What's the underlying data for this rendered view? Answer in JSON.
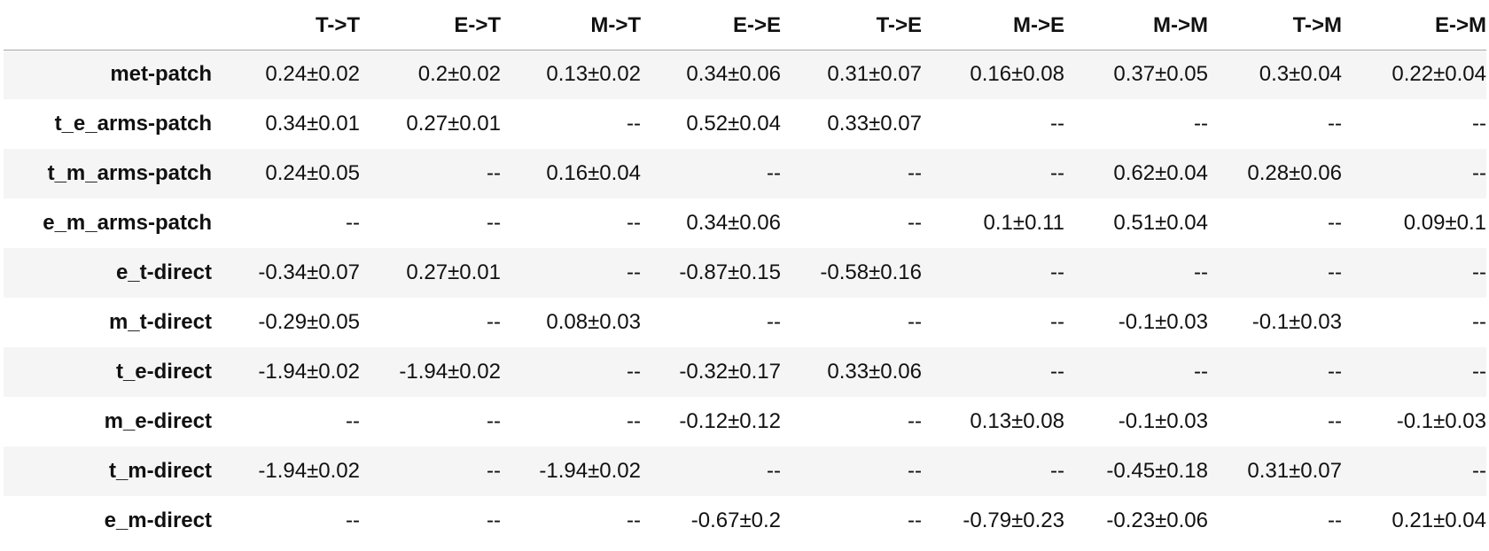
{
  "table": {
    "index_header": "",
    "columns": [
      "T->T",
      "E->T",
      "M->T",
      "E->E",
      "T->E",
      "M->E",
      "M->M",
      "T->M",
      "E->M"
    ],
    "rows": [
      {
        "label": "met-patch",
        "cells": [
          "0.24±0.02",
          "0.2±0.02",
          "0.13±0.02",
          "0.34±0.06",
          "0.31±0.07",
          "0.16±0.08",
          "0.37±0.05",
          "0.3±0.04",
          "0.22±0.04"
        ]
      },
      {
        "label": "t_e_arms-patch",
        "cells": [
          "0.34±0.01",
          "0.27±0.01",
          "--",
          "0.52±0.04",
          "0.33±0.07",
          "--",
          "--",
          "--",
          "--"
        ]
      },
      {
        "label": "t_m_arms-patch",
        "cells": [
          "0.24±0.05",
          "--",
          "0.16±0.04",
          "--",
          "--",
          "--",
          "0.62±0.04",
          "0.28±0.06",
          "--"
        ]
      },
      {
        "label": "e_m_arms-patch",
        "cells": [
          "--",
          "--",
          "--",
          "0.34±0.06",
          "--",
          "0.1±0.11",
          "0.51±0.04",
          "--",
          "0.09±0.1"
        ]
      },
      {
        "label": "e_t-direct",
        "cells": [
          "-0.34±0.07",
          "0.27±0.01",
          "--",
          "-0.87±0.15",
          "-0.58±0.16",
          "--",
          "--",
          "--",
          "--"
        ]
      },
      {
        "label": "m_t-direct",
        "cells": [
          "-0.29±0.05",
          "--",
          "0.08±0.03",
          "--",
          "--",
          "--",
          "-0.1±0.03",
          "-0.1±0.03",
          "--"
        ]
      },
      {
        "label": "t_e-direct",
        "cells": [
          "-1.94±0.02",
          "-1.94±0.02",
          "--",
          "-0.32±0.17",
          "0.33±0.06",
          "--",
          "--",
          "--",
          "--"
        ]
      },
      {
        "label": "m_e-direct",
        "cells": [
          "--",
          "--",
          "--",
          "-0.12±0.12",
          "--",
          "0.13±0.08",
          "-0.1±0.03",
          "--",
          "-0.1±0.03"
        ]
      },
      {
        "label": "t_m-direct",
        "cells": [
          "-1.94±0.02",
          "--",
          "-1.94±0.02",
          "--",
          "--",
          "--",
          "-0.45±0.18",
          "0.31±0.07",
          "--"
        ]
      },
      {
        "label": "e_m-direct",
        "cells": [
          "--",
          "--",
          "--",
          "-0.67±0.2",
          "--",
          "-0.79±0.23",
          "-0.23±0.06",
          "--",
          "0.21±0.04"
        ]
      }
    ]
  },
  "colors": {
    "stripe": "#f5f5f5",
    "header_rule": "#a9a9a9",
    "text": "#111111"
  }
}
